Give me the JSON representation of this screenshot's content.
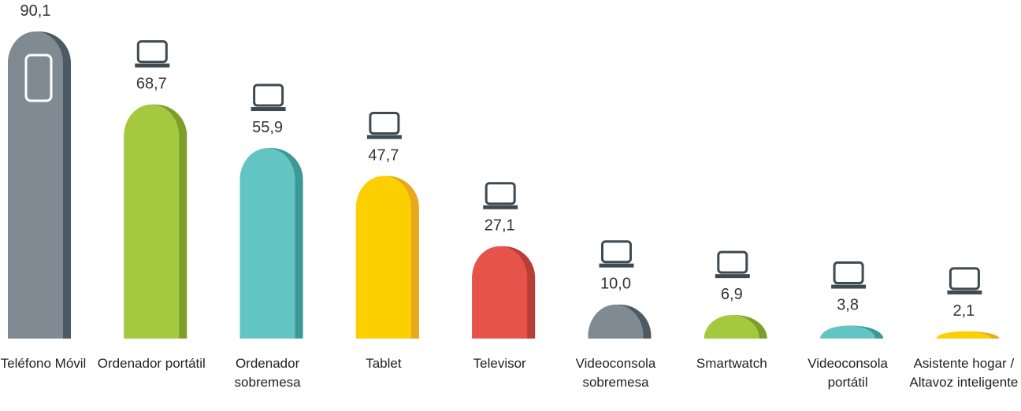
{
  "chart_data": {
    "type": "bar",
    "categories": [
      "Teléfono Móvil",
      "Ordenador portátil",
      "Ordenador sobremesa",
      "Tablet",
      "Televisor",
      "Videoconsola sobremesa",
      "Smartwatch",
      "Videoconsola portátil",
      "Asistente hogar / Altavoz inteligente"
    ],
    "values": [
      90.1,
      68.7,
      55.9,
      47.7,
      27.1,
      10.0,
      6.9,
      3.8,
      2.1
    ],
    "value_labels": [
      "90,1",
      "68,7",
      "55,9",
      "47,7",
      "27,1",
      "10,0",
      "6,9",
      "3,8",
      "2,1"
    ],
    "colors": [
      "#7f8a93",
      "#a4c93f",
      "#62c5c3",
      "#fccf00",
      "#e5534b",
      "#7f8a93",
      "#a4c93f",
      "#62c5c3",
      "#fccf00"
    ],
    "shade_colors": [
      "#4c5a63",
      "#7e9e2b",
      "#3d9896",
      "#e8a91c",
      "#b83d36",
      "#4c5a63",
      "#7e9e2b",
      "#3d9896",
      "#e8a91c"
    ]
  }
}
